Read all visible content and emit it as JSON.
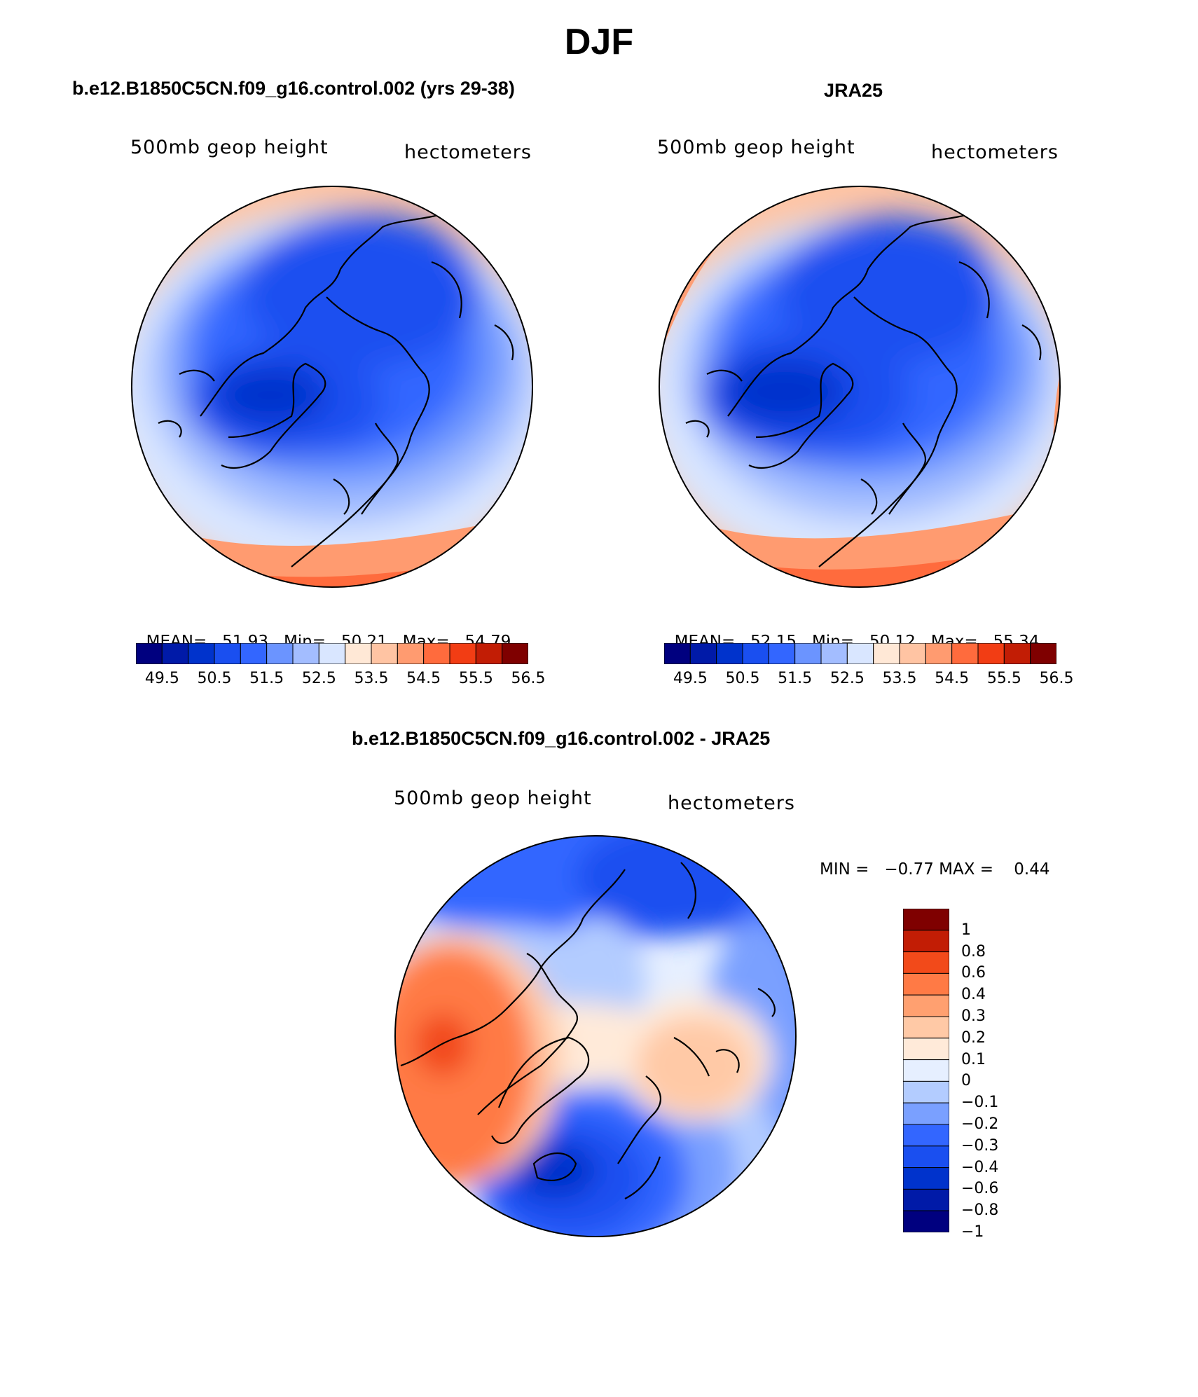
{
  "title": "DJF",
  "colors": {
    "abs_levels": [
      "#00007f",
      "#001aa8",
      "#0033cc",
      "#1a4ff0",
      "#3366ff",
      "#6b94ff",
      "#a3bdff",
      "#d9e6ff",
      "#ffe8d6",
      "#ffc4a3",
      "#ff9b70",
      "#ff6b3d",
      "#f23d14",
      "#c21d05",
      "#7f0000"
    ],
    "diff_levels": [
      "#00007f",
      "#001aa8",
      "#0033cc",
      "#1a4ff0",
      "#3366ff",
      "#7aa0ff",
      "#b3ccff",
      "#e6efff",
      "#ffead9",
      "#ffc9a6",
      "#ffa070",
      "#ff7a45",
      "#f24a1a",
      "#c21d05",
      "#7f0000"
    ]
  },
  "panel_model": {
    "header": "b.e12.B1850C5CN.f09_g16.control.002 (yrs 29-38)",
    "variable": "500mb geop height",
    "units": "hectometers",
    "stats": {
      "mean_label": "MEAN=",
      "mean": "51.93",
      "min_label": "Min=",
      "min": "50.21",
      "max_label": "Max=",
      "max": "54.79"
    }
  },
  "panel_obs": {
    "header": "JRA25",
    "variable": "500mb geop height",
    "units": "hectometers",
    "stats": {
      "mean_label": "MEAN=",
      "mean": "52.15",
      "min_label": "Min=",
      "min": "50.12",
      "max_label": "Max=",
      "max": "55.34"
    }
  },
  "colorbar_abs": {
    "ticks": [
      "49.5",
      "50.5",
      "51.5",
      "52.5",
      "53.5",
      "54.5",
      "55.5",
      "56.5"
    ]
  },
  "panel_diff": {
    "header": "b.e12.B1850C5CN.f09_g16.control.002 - JRA25",
    "variable": "500mb geop height",
    "units": "hectometers",
    "stats_text": "MIN =   −0.77 MAX =    0.44",
    "colorbar_ticks": [
      "1",
      "0.8",
      "0.6",
      "0.4",
      "0.3",
      "0.2",
      "0.1",
      "0",
      "−0.1",
      "−0.2",
      "−0.3",
      "−0.4",
      "−0.6",
      "−0.8",
      "−1"
    ]
  }
}
